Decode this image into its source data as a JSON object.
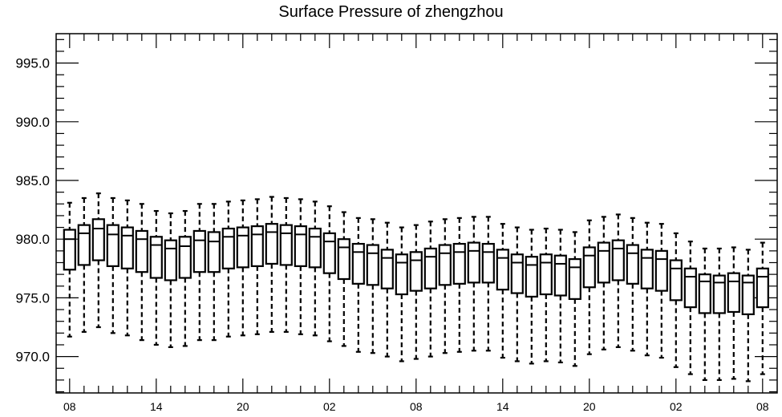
{
  "chart_data": {
    "type": "box",
    "title": "Surface Pressure of zhengzhou",
    "xlabel": "",
    "ylabel": "",
    "y_tick_labels": [
      "970.0",
      "975.0",
      "980.0",
      "985.0",
      "990.0",
      "995.0"
    ],
    "y_ticks": [
      970,
      975,
      980,
      985,
      990,
      995
    ],
    "ylim": [
      966.9,
      997.5
    ],
    "x_tick_labels": [
      "08",
      "14",
      "20",
      "02",
      "08",
      "14",
      "20",
      "02",
      "08"
    ],
    "x_tick_positions": [
      0,
      6,
      12,
      18,
      24,
      30,
      36,
      42,
      48
    ],
    "x_minor_step": 1,
    "grid": false,
    "boxes": [
      {
        "x": 0,
        "whisker_low": 971.7,
        "q1": 977.4,
        "median": 980.0,
        "q3": 980.8,
        "whisker_high": 983.1
      },
      {
        "x": 1,
        "whisker_low": 972.1,
        "q1": 977.8,
        "median": 980.5,
        "q3": 981.2,
        "whisker_high": 983.5
      },
      {
        "x": 2,
        "whisker_low": 972.5,
        "q1": 978.2,
        "median": 980.9,
        "q3": 981.7,
        "whisker_high": 983.9
      },
      {
        "x": 3,
        "whisker_low": 972.0,
        "q1": 977.7,
        "median": 980.4,
        "q3": 981.2,
        "whisker_high": 983.5
      },
      {
        "x": 4,
        "whisker_low": 971.8,
        "q1": 977.5,
        "median": 980.3,
        "q3": 981.0,
        "whisker_high": 983.3
      },
      {
        "x": 5,
        "whisker_low": 971.4,
        "q1": 977.2,
        "median": 980.0,
        "q3": 980.7,
        "whisker_high": 983.0
      },
      {
        "x": 6,
        "whisker_low": 971.0,
        "q1": 976.7,
        "median": 979.5,
        "q3": 980.2,
        "whisker_high": 982.4
      },
      {
        "x": 7,
        "whisker_low": 970.8,
        "q1": 976.5,
        "median": 979.2,
        "q3": 979.9,
        "whisker_high": 982.2
      },
      {
        "x": 8,
        "whisker_low": 970.9,
        "q1": 976.7,
        "median": 979.4,
        "q3": 980.2,
        "whisker_high": 982.4
      },
      {
        "x": 9,
        "whisker_low": 971.4,
        "q1": 977.2,
        "median": 979.9,
        "q3": 980.7,
        "whisker_high": 983.0
      },
      {
        "x": 10,
        "whisker_low": 971.4,
        "q1": 977.2,
        "median": 979.8,
        "q3": 980.6,
        "whisker_high": 983.0
      },
      {
        "x": 11,
        "whisker_low": 971.7,
        "q1": 977.5,
        "median": 980.2,
        "q3": 980.9,
        "whisker_high": 983.2
      },
      {
        "x": 12,
        "whisker_low": 971.8,
        "q1": 977.6,
        "median": 980.3,
        "q3": 981.0,
        "whisker_high": 983.3
      },
      {
        "x": 13,
        "whisker_low": 971.9,
        "q1": 977.7,
        "median": 980.4,
        "q3": 981.1,
        "whisker_high": 983.4
      },
      {
        "x": 14,
        "whisker_low": 972.1,
        "q1": 977.9,
        "median": 980.6,
        "q3": 981.3,
        "whisker_high": 983.6
      },
      {
        "x": 15,
        "whisker_low": 972.1,
        "q1": 977.8,
        "median": 980.5,
        "q3": 981.2,
        "whisker_high": 983.5
      },
      {
        "x": 16,
        "whisker_low": 971.9,
        "q1": 977.7,
        "median": 980.4,
        "q3": 981.1,
        "whisker_high": 983.4
      },
      {
        "x": 17,
        "whisker_low": 971.8,
        "q1": 977.6,
        "median": 980.2,
        "q3": 980.9,
        "whisker_high": 983.2
      },
      {
        "x": 18,
        "whisker_low": 971.3,
        "q1": 977.1,
        "median": 979.8,
        "q3": 980.5,
        "whisker_high": 982.8
      },
      {
        "x": 19,
        "whisker_low": 970.9,
        "q1": 976.6,
        "median": 979.3,
        "q3": 980.0,
        "whisker_high": 982.3
      },
      {
        "x": 20,
        "whisker_low": 970.4,
        "q1": 976.2,
        "median": 978.9,
        "q3": 979.6,
        "whisker_high": 981.8
      },
      {
        "x": 21,
        "whisker_low": 970.3,
        "q1": 976.1,
        "median": 978.8,
        "q3": 979.5,
        "whisker_high": 981.7
      },
      {
        "x": 22,
        "whisker_low": 970.0,
        "q1": 975.8,
        "median": 978.4,
        "q3": 979.1,
        "whisker_high": 981.4
      },
      {
        "x": 23,
        "whisker_low": 969.6,
        "q1": 975.3,
        "median": 978.0,
        "q3": 978.7,
        "whisker_high": 981.0
      },
      {
        "x": 24,
        "whisker_low": 969.8,
        "q1": 975.6,
        "median": 978.2,
        "q3": 978.9,
        "whisker_high": 981.2
      },
      {
        "x": 25,
        "whisker_low": 970.0,
        "q1": 975.8,
        "median": 978.5,
        "q3": 979.2,
        "whisker_high": 981.5
      },
      {
        "x": 26,
        "whisker_low": 970.3,
        "q1": 976.1,
        "median": 978.8,
        "q3": 979.5,
        "whisker_high": 981.7
      },
      {
        "x": 27,
        "whisker_low": 970.4,
        "q1": 976.2,
        "median": 978.9,
        "q3": 979.6,
        "whisker_high": 981.8
      },
      {
        "x": 28,
        "whisker_low": 970.5,
        "q1": 976.3,
        "median": 979.0,
        "q3": 979.7,
        "whisker_high": 981.9
      },
      {
        "x": 29,
        "whisker_low": 970.5,
        "q1": 976.3,
        "median": 978.9,
        "q3": 979.6,
        "whisker_high": 981.9
      },
      {
        "x": 30,
        "whisker_low": 969.9,
        "q1": 975.7,
        "median": 978.4,
        "q3": 979.1,
        "whisker_high": 981.3
      },
      {
        "x": 31,
        "whisker_low": 969.6,
        "q1": 975.4,
        "median": 978.0,
        "q3": 978.7,
        "whisker_high": 981.0
      },
      {
        "x": 32,
        "whisker_low": 969.4,
        "q1": 975.1,
        "median": 977.8,
        "q3": 978.5,
        "whisker_high": 980.8
      },
      {
        "x": 33,
        "whisker_low": 969.6,
        "q1": 975.3,
        "median": 978.0,
        "q3": 978.7,
        "whisker_high": 980.9
      },
      {
        "x": 34,
        "whisker_low": 969.5,
        "q1": 975.2,
        "median": 977.9,
        "q3": 978.6,
        "whisker_high": 980.8
      },
      {
        "x": 35,
        "whisker_low": 969.2,
        "q1": 974.9,
        "median": 977.6,
        "q3": 978.3,
        "whisker_high": 980.6
      },
      {
        "x": 36,
        "whisker_low": 970.2,
        "q1": 975.9,
        "median": 978.6,
        "q3": 979.3,
        "whisker_high": 981.6
      },
      {
        "x": 37,
        "whisker_low": 970.6,
        "q1": 976.3,
        "median": 979.0,
        "q3": 979.7,
        "whisker_high": 981.9
      },
      {
        "x": 38,
        "whisker_low": 970.8,
        "q1": 976.5,
        "median": 979.2,
        "q3": 979.9,
        "whisker_high": 982.1
      },
      {
        "x": 39,
        "whisker_low": 970.5,
        "q1": 976.2,
        "median": 978.8,
        "q3": 979.5,
        "whisker_high": 981.8
      },
      {
        "x": 40,
        "whisker_low": 970.1,
        "q1": 975.8,
        "median": 978.4,
        "q3": 979.1,
        "whisker_high": 981.4
      },
      {
        "x": 41,
        "whisker_low": 969.9,
        "q1": 975.6,
        "median": 978.3,
        "q3": 979.0,
        "whisker_high": 981.3
      },
      {
        "x": 42,
        "whisker_low": 969.1,
        "q1": 974.8,
        "median": 977.5,
        "q3": 978.2,
        "whisker_high": 980.5
      },
      {
        "x": 43,
        "whisker_low": 968.5,
        "q1": 974.2,
        "median": 976.8,
        "q3": 977.5,
        "whisker_high": 979.8
      },
      {
        "x": 44,
        "whisker_low": 968.0,
        "q1": 973.7,
        "median": 976.4,
        "q3": 977.0,
        "whisker_high": 979.2
      },
      {
        "x": 45,
        "whisker_low": 968.0,
        "q1": 973.7,
        "median": 976.3,
        "q3": 976.9,
        "whisker_high": 979.2
      },
      {
        "x": 46,
        "whisker_low": 968.1,
        "q1": 973.8,
        "median": 976.4,
        "q3": 977.1,
        "whisker_high": 979.3
      },
      {
        "x": 47,
        "whisker_low": 967.9,
        "q1": 973.6,
        "median": 976.3,
        "q3": 976.9,
        "whisker_high": 979.1
      },
      {
        "x": 48,
        "whisker_low": 968.5,
        "q1": 974.2,
        "median": 976.8,
        "q3": 977.5,
        "whisker_high": 979.7
      }
    ]
  }
}
